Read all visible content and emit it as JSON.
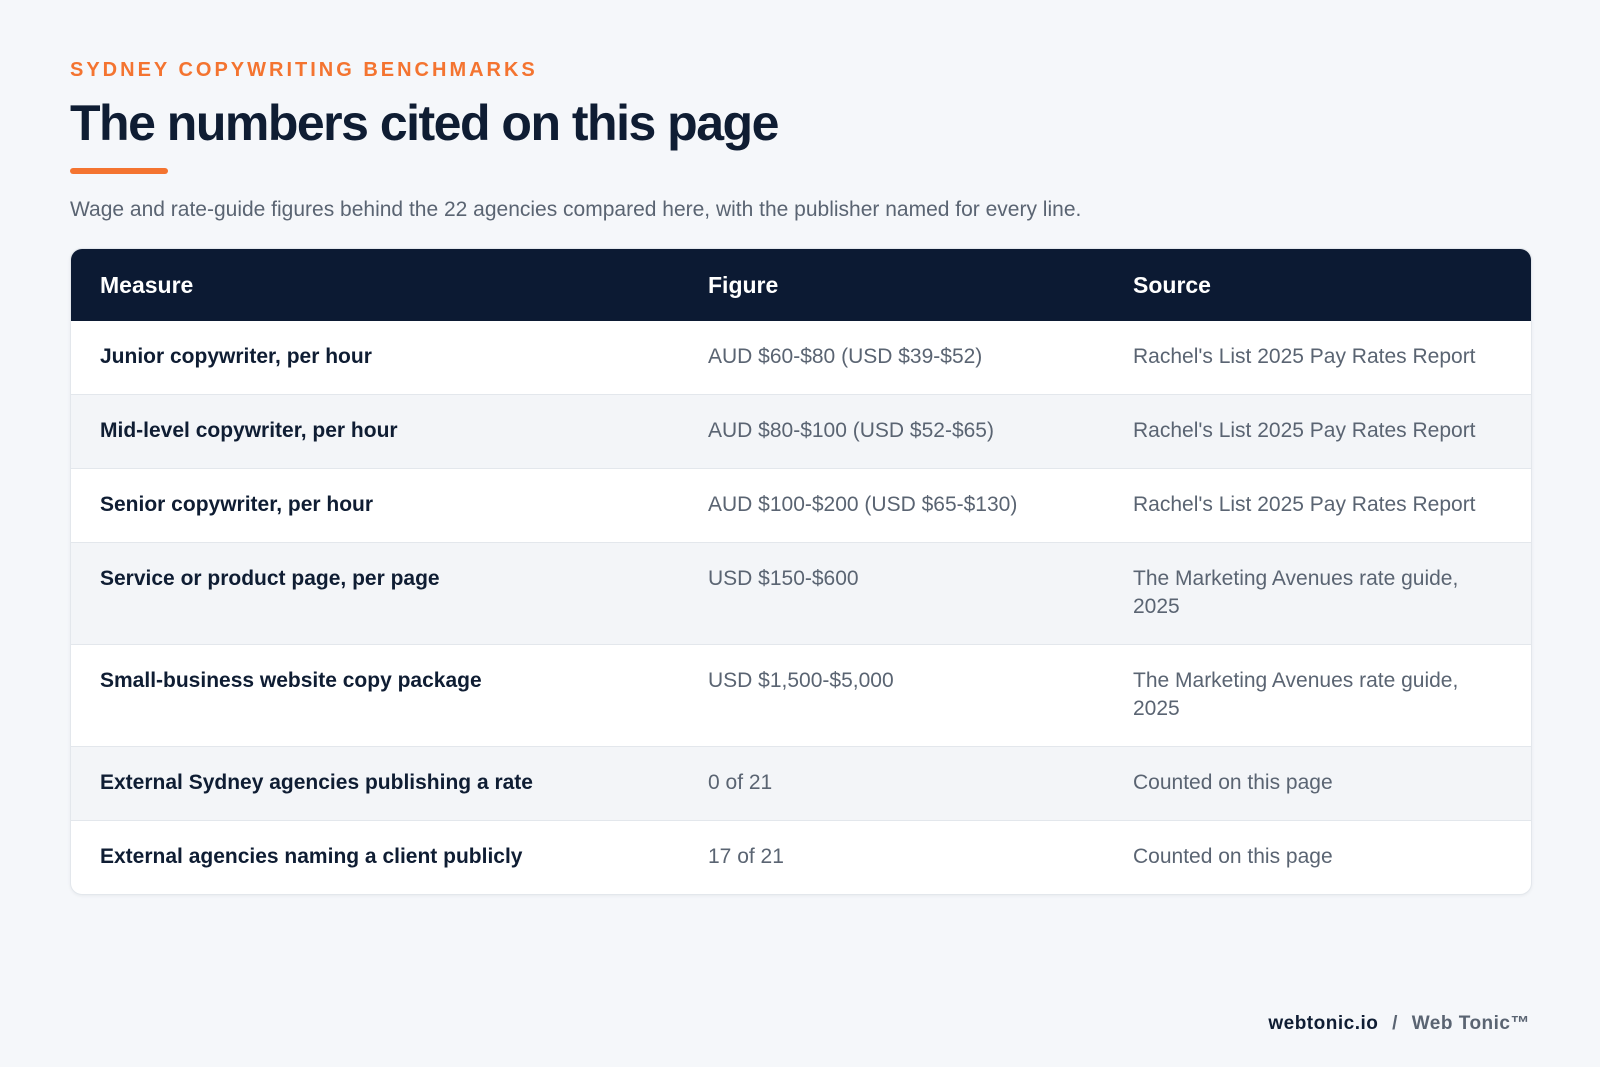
{
  "header": {
    "eyebrow": "SYDNEY COPYWRITING BENCHMARKS",
    "title": "The numbers cited on this page",
    "subtitle": "Wage and rate-guide figures behind the 22 agencies compared here, with the publisher named for every line."
  },
  "table": {
    "columns": [
      "Measure",
      "Figure",
      "Source"
    ],
    "rows": [
      {
        "measure": "Junior copywriter, per hour",
        "figure": "AUD $60-$80 (USD $39-$52)",
        "source": "Rachel's List 2025 Pay Rates Report"
      },
      {
        "measure": "Mid-level copywriter, per hour",
        "figure": "AUD $80-$100 (USD $52-$65)",
        "source": "Rachel's List 2025 Pay Rates Report"
      },
      {
        "measure": "Senior copywriter, per hour",
        "figure": "AUD $100-$200 (USD $65-$130)",
        "source": "Rachel's List 2025 Pay Rates Report"
      },
      {
        "measure": "Service or product page, per page",
        "figure": "USD $150-$600",
        "source": "The Marketing Avenues rate guide, 2025"
      },
      {
        "measure": "Small-business website copy package",
        "figure": "USD $1,500-$5,000",
        "source": "The Marketing Avenues rate guide, 2025"
      },
      {
        "measure": "External Sydney agencies publishing a rate",
        "figure": "0 of 21",
        "source": "Counted on this page"
      },
      {
        "measure": "External agencies naming a client publicly",
        "figure": "17 of 21",
        "source": "Counted on this page"
      }
    ]
  },
  "footer": {
    "domain": "webtonic.io",
    "separator": "/",
    "brand": "Web Tonic™"
  },
  "colors": {
    "accent": "#f47430",
    "navy": "#0c1a33",
    "text_muted": "#5a6472",
    "background": "#f5f7fa"
  }
}
